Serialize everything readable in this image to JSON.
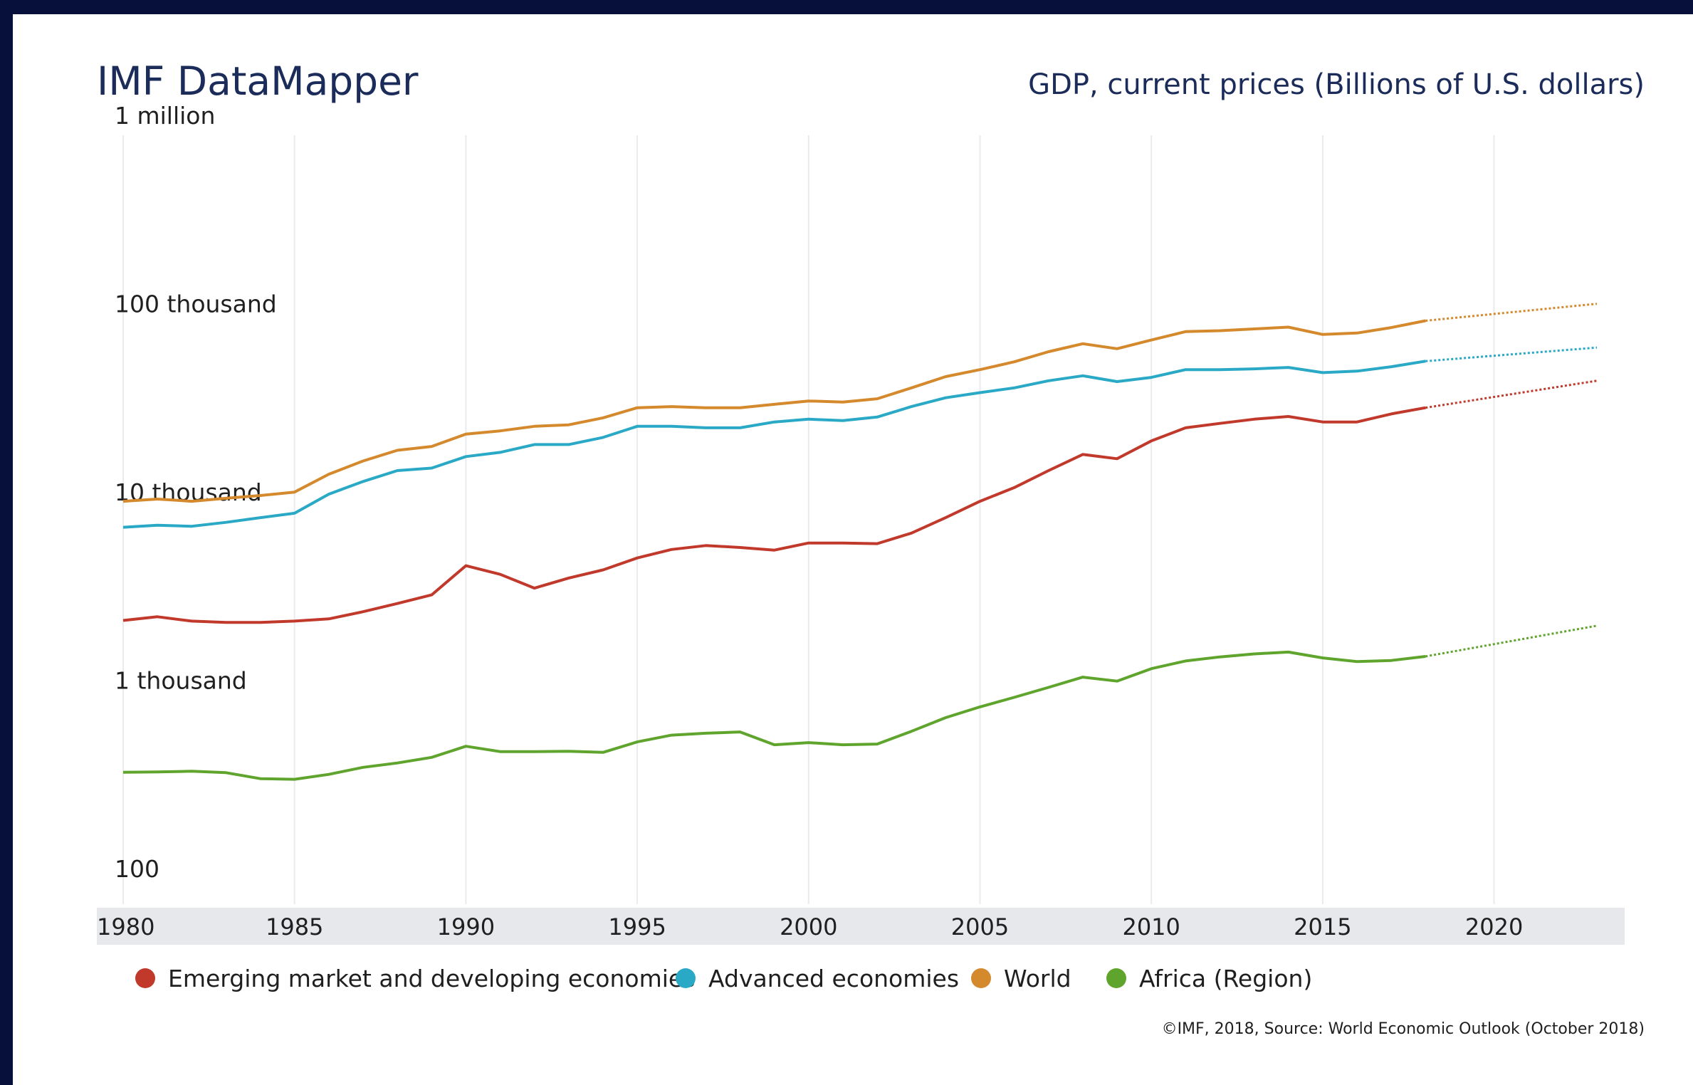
{
  "header": {
    "brand": "IMF DataMapper",
    "indicator": "GDP, current prices (Billions of U.S. dollars)"
  },
  "footer": {
    "credit": "©IMF, 2018, Source: World Economic Outlook (October 2018)"
  },
  "chart_data": {
    "type": "line",
    "title": "GDP, current prices (Billions of U.S. dollars)",
    "xlabel": "",
    "ylabel": "",
    "yscale": "log",
    "ylim": [
      100,
      1000000
    ],
    "xlim": [
      1980,
      2023
    ],
    "grid": "vertical",
    "legend": "bottom",
    "y_ticks": [
      {
        "value": 1000000,
        "label": "1 million"
      },
      {
        "value": 100000,
        "label": "100 thousand"
      },
      {
        "value": 10000,
        "label": "10 thousand"
      },
      {
        "value": 1000,
        "label": "1 thousand"
      },
      {
        "value": 100,
        "label": "100"
      }
    ],
    "x_ticks": [
      1980,
      1985,
      1990,
      1995,
      2000,
      2005,
      2010,
      2015,
      2020
    ],
    "last_actual_year": 2018,
    "series": [
      {
        "name": "Emerging market and developing economies",
        "color": "#c0392b",
        "x": [
          1980,
          1981,
          1982,
          1983,
          1984,
          1985,
          1986,
          1987,
          1988,
          1989,
          1990,
          1991,
          1992,
          1993,
          1994,
          1995,
          1996,
          1997,
          1998,
          1999,
          2000,
          2001,
          2002,
          2003,
          2004,
          2005,
          2006,
          2007,
          2008,
          2009,
          2010,
          2011,
          2012,
          2013,
          2014,
          2015,
          2016,
          2017,
          2018,
          2023
        ],
        "values": [
          2560,
          2680,
          2540,
          2500,
          2500,
          2540,
          2610,
          2850,
          3150,
          3500,
          5000,
          4500,
          3800,
          4300,
          4750,
          5500,
          6100,
          6400,
          6250,
          6050,
          6600,
          6600,
          6550,
          7450,
          9000,
          11000,
          13000,
          16000,
          19500,
          18500,
          23000,
          27000,
          28500,
          30000,
          31000,
          29000,
          29000,
          32000,
          34500,
          48000
        ]
      },
      {
        "name": "Advanced economies",
        "color": "#2aa9c6",
        "x": [
          1980,
          1981,
          1982,
          1983,
          1984,
          1985,
          1986,
          1987,
          1988,
          1989,
          1990,
          1991,
          1992,
          1993,
          1994,
          1995,
          1996,
          1997,
          1998,
          1999,
          2000,
          2001,
          2002,
          2003,
          2004,
          2005,
          2006,
          2007,
          2008,
          2009,
          2010,
          2011,
          2012,
          2013,
          2014,
          2015,
          2016,
          2017,
          2018,
          2023
        ],
        "values": [
          8000,
          8200,
          8100,
          8500,
          9000,
          9500,
          12000,
          14000,
          16000,
          16500,
          19000,
          20000,
          22000,
          22000,
          24000,
          27500,
          27500,
          27000,
          27000,
          29000,
          30000,
          29500,
          30800,
          35000,
          39000,
          41500,
          44000,
          48000,
          51000,
          47500,
          50000,
          55000,
          55000,
          55500,
          56500,
          53000,
          54000,
          57000,
          61000,
          72000
        ]
      },
      {
        "name": "World",
        "color": "#d4892d",
        "x": [
          1980,
          1981,
          1982,
          1983,
          1984,
          1985,
          1986,
          1987,
          1988,
          1989,
          1990,
          1991,
          1992,
          1993,
          1994,
          1995,
          1996,
          1997,
          1998,
          1999,
          2000,
          2001,
          2002,
          2003,
          2004,
          2005,
          2006,
          2007,
          2008,
          2009,
          2010,
          2011,
          2012,
          2013,
          2014,
          2015,
          2016,
          2017,
          2018,
          2023
        ],
        "values": [
          11000,
          11300,
          11000,
          11400,
          11800,
          12300,
          15300,
          18000,
          20500,
          21500,
          25000,
          26000,
          27500,
          28000,
          30500,
          34500,
          35000,
          34500,
          34500,
          36000,
          37500,
          37000,
          38500,
          44000,
          50500,
          55000,
          60500,
          68500,
          75500,
          71000,
          79000,
          87500,
          88500,
          90500,
          92500,
          84500,
          86000,
          92000,
          100000,
          123000
        ]
      },
      {
        "name": "Africa (Region)",
        "color": "#5fa52d",
        "x": [
          1980,
          1981,
          1982,
          1983,
          1984,
          1985,
          1986,
          1987,
          1988,
          1989,
          1990,
          1991,
          1992,
          1993,
          1994,
          1995,
          1996,
          1997,
          1998,
          1999,
          2000,
          2001,
          2002,
          2003,
          2004,
          2005,
          2006,
          2007,
          2008,
          2009,
          2010,
          2011,
          2012,
          2013,
          2014,
          2015,
          2016,
          2017,
          2018,
          2023
        ],
        "values": [
          400,
          402,
          405,
          398,
          370,
          367,
          390,
          425,
          448,
          480,
          550,
          515,
          515,
          517,
          510,
          580,
          630,
          645,
          655,
          560,
          575,
          560,
          565,
          660,
          780,
          890,
          1000,
          1130,
          1280,
          1220,
          1420,
          1560,
          1640,
          1700,
          1740,
          1620,
          1550,
          1570,
          1650,
          2400
        ]
      }
    ]
  }
}
